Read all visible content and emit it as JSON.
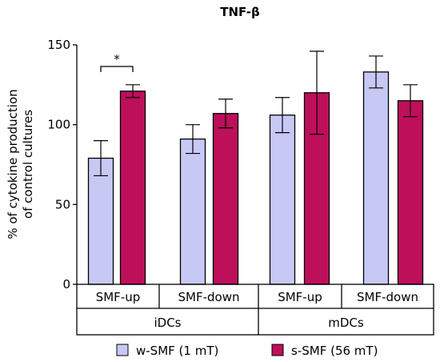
{
  "chart_data": {
    "type": "bar",
    "title": "TNF-β",
    "ylabel_line1": "% of cytokine production",
    "ylabel_line2": "of control cultures",
    "ylim": [
      0,
      150
    ],
    "yticks": [
      0,
      50,
      100,
      150
    ],
    "categories": [
      "SMF-up",
      "SMF-down",
      "SMF-up",
      "SMF-down"
    ],
    "groups": [
      {
        "label": "iDCs",
        "span": [
          0,
          1
        ]
      },
      {
        "label": "mDCs",
        "span": [
          2,
          3
        ]
      }
    ],
    "series": [
      {
        "name": "w-SMF (1 mT)",
        "color": "#c8c8f5",
        "values": [
          79,
          91,
          106,
          133
        ],
        "errors": [
          11,
          9,
          11,
          10
        ]
      },
      {
        "name": "s-SMF (56 mT)",
        "color": "#be0f5a",
        "values": [
          121,
          107,
          120,
          115
        ],
        "errors": [
          4,
          9,
          26,
          10
        ]
      }
    ],
    "annotations": [
      {
        "text": "*",
        "category_index": 0
      }
    ],
    "grid": false,
    "legend_position": "bottom"
  }
}
